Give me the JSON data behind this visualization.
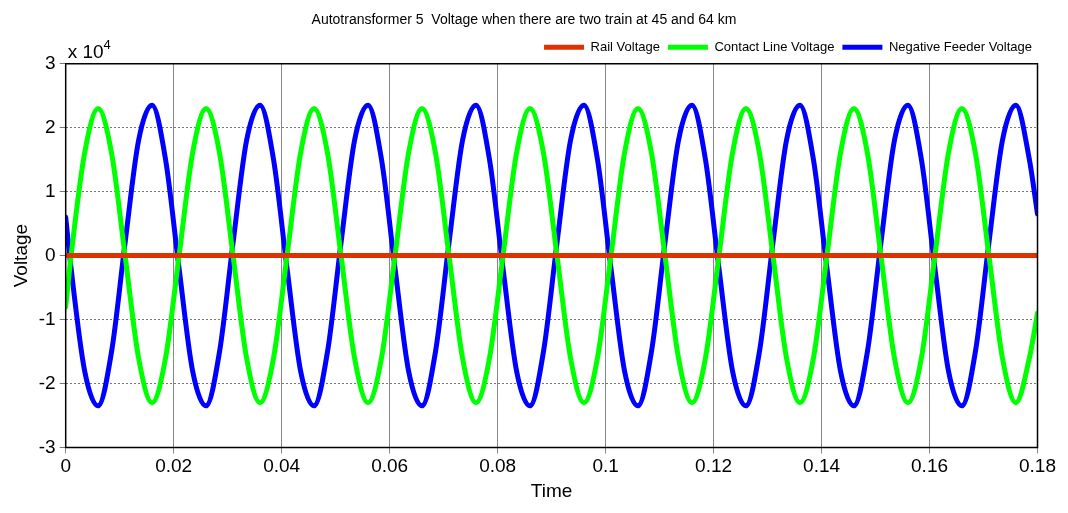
{
  "chart_data": {
    "type": "line",
    "title": "Autotransformer 5  Voltage when there are two train at 45 and 64 km",
    "xlabel": "Time",
    "ylabel": "Voltage",
    "annotations": [
      "x 10$^{4}$"
    ],
    "x": [
      0,
      0.001,
      0.0035,
      0.006,
      0.0085,
      0.011,
      0.0135,
      0.016,
      0.0185,
      0.021,
      0.0235,
      0.026,
      0.0285,
      0.031,
      0.0335,
      0.036,
      0.0385,
      0.041,
      0.0435,
      0.046,
      0.0485,
      0.051,
      0.0535,
      0.056,
      0.0585,
      0.061,
      0.0635,
      0.066,
      0.0685,
      0.071,
      0.0735,
      0.076,
      0.0785,
      0.081,
      0.0835,
      0.086,
      0.0885,
      0.091,
      0.0935,
      0.096,
      0.0985,
      0.101,
      0.1035,
      0.106,
      0.1085,
      0.111,
      0.1135,
      0.116,
      0.1185,
      0.121,
      0.1235,
      0.126,
      0.1285,
      0.131,
      0.1335,
      0.136,
      0.1385,
      0.141,
      0.1435,
      0.146,
      0.1485,
      0.151,
      0.1535,
      0.156,
      0.1585,
      0.161,
      0.1635,
      0.166,
      0.1685,
      0.171,
      0.1735,
      0.176,
      0.1785,
      0.18
    ],
    "series": [
      {
        "name": "Rail Voltage",
        "color": "#dd3300",
        "x": [
          0,
          0.18
        ],
        "values": [
          0,
          0
        ]
      },
      {
        "name": "Contact Line Voltage",
        "color": "#00ff00",
        "values": [
          -0.8,
          0,
          1.6,
          2.3,
          1.6,
          0,
          -1.6,
          -2.3,
          -1.6,
          0,
          1.6,
          2.3,
          1.6,
          0,
          -1.6,
          -2.3,
          -1.6,
          0,
          1.6,
          2.3,
          1.6,
          0,
          -1.6,
          -2.3,
          -1.6,
          0,
          1.6,
          2.3,
          1.6,
          0,
          -1.6,
          -2.3,
          -1.6,
          0,
          1.6,
          2.3,
          1.6,
          0,
          -1.6,
          -2.3,
          -1.6,
          0,
          1.6,
          2.3,
          1.6,
          0,
          -1.6,
          -2.3,
          -1.6,
          0,
          1.6,
          2.3,
          1.6,
          0,
          -1.6,
          -2.3,
          -1.6,
          0,
          1.6,
          2.3,
          1.6,
          0,
          -1.6,
          -2.3,
          -1.6,
          0,
          1.6,
          2.3,
          1.6,
          0,
          -1.6,
          -2.3,
          -1.6,
          -0.9
        ]
      },
      {
        "name": "Negative Feeder Voltage",
        "color": "#0000ff",
        "values": [
          0.6,
          -0.2,
          -1.8,
          -2.35,
          -1.5,
          0.2,
          1.8,
          2.35,
          1.5,
          -0.2,
          -1.8,
          -2.35,
          -1.5,
          0.2,
          1.8,
          2.35,
          1.5,
          -0.2,
          -1.8,
          -2.35,
          -1.5,
          0.2,
          1.8,
          2.35,
          1.5,
          -0.2,
          -1.8,
          -2.35,
          -1.5,
          0.2,
          1.8,
          2.35,
          1.5,
          -0.2,
          -1.8,
          -2.35,
          -1.5,
          0.2,
          1.8,
          2.35,
          1.5,
          -0.2,
          -1.8,
          -2.35,
          -1.5,
          0.2,
          1.8,
          2.35,
          1.5,
          -0.2,
          -1.8,
          -2.35,
          -1.5,
          0.2,
          1.8,
          2.35,
          1.5,
          -0.2,
          -1.8,
          -2.35,
          -1.5,
          0.2,
          1.8,
          2.35,
          1.5,
          -0.2,
          -1.8,
          -2.35,
          -1.5,
          0.2,
          1.8,
          2.35,
          1.5,
          0.65
        ]
      }
    ],
    "xlim": [
      0,
      0.18
    ],
    "xticks": [
      0,
      0.02,
      0.04,
      0.06,
      0.08,
      0.1,
      0.12,
      0.14,
      0.16,
      0.18
    ],
    "ylim": [
      -3,
      3
    ],
    "yticks": [
      -3,
      -2,
      -1,
      0,
      1,
      2,
      3
    ],
    "grid": true,
    "legend": "top right",
    "marker": "none",
    "line_style": "solid"
  }
}
